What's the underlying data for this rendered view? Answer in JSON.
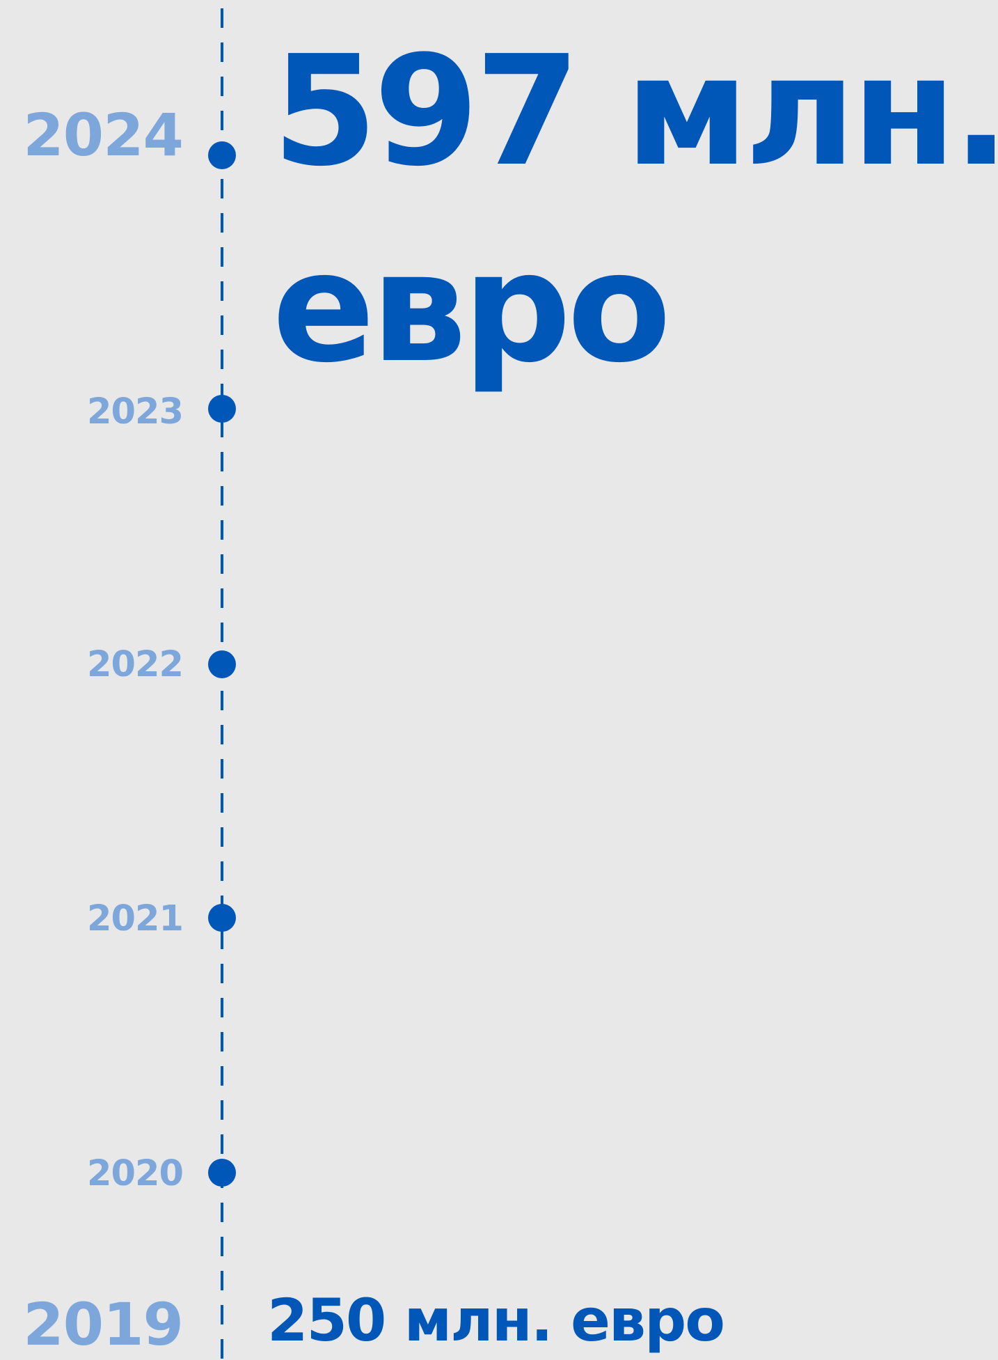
{
  "timeline": {
    "years": [
      {
        "label": "2024",
        "value_line1": "597 млн.",
        "value_line2": "евро"
      },
      {
        "label": "2023"
      },
      {
        "label": "2022"
      },
      {
        "label": "2021"
      },
      {
        "label": "2020"
      },
      {
        "label": "2019",
        "value": "250 млн. евро"
      }
    ]
  },
  "colors": {
    "background": "#E8E8E9",
    "accent_blue": "#0057B7",
    "year_label_blue": "#7DA6DB"
  }
}
